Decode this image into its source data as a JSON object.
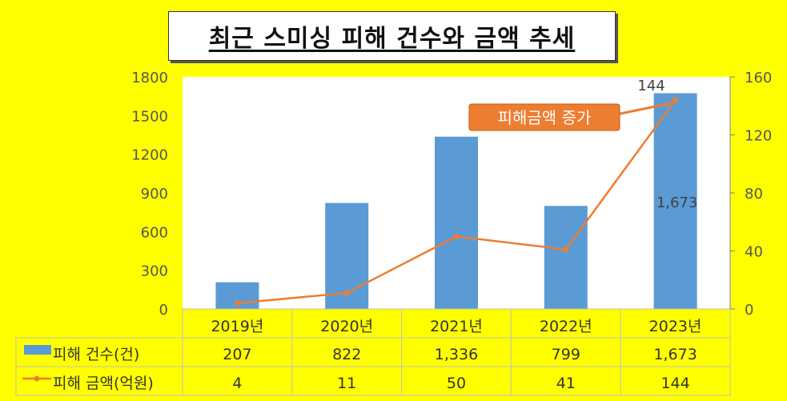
{
  "title": "최근 스미싱 피해 건수와 금액 추세",
  "callout": "피해금액 증가",
  "colors": {
    "bar": "#5b9bd5",
    "line": "#ed7d31",
    "background": "#ffff00",
    "callout": "#ed7d31"
  },
  "chart_data": {
    "type": "bar",
    "title": "최근 스미싱 피해 건수와 금액 추세",
    "categories": [
      "2019년",
      "2020년",
      "2021년",
      "2022년",
      "2023년"
    ],
    "series": [
      {
        "name": "피해 건수(건)",
        "type": "bar",
        "axis": "left",
        "values": [
          207,
          822,
          1336,
          799,
          1673
        ],
        "display": [
          "207",
          "822",
          "1,336",
          "799",
          "1,673"
        ]
      },
      {
        "name": "피해 금액(억원)",
        "type": "line",
        "axis": "right",
        "values": [
          4,
          11,
          50,
          41,
          144
        ],
        "display": [
          "4",
          "11",
          "50",
          "41",
          "144"
        ]
      }
    ],
    "y_left": {
      "ticks": [
        0,
        300,
        600,
        900,
        1200,
        1500,
        1800
      ],
      "range": [
        0,
        1800
      ]
    },
    "y_right": {
      "ticks": [
        0,
        40,
        80,
        120,
        160
      ],
      "range": [
        0,
        160
      ]
    },
    "data_labels": [
      {
        "series": "피해 금액(억원)",
        "category": "2023년",
        "text": "144"
      },
      {
        "series": "피해 건수(건)",
        "category": "2023년",
        "text": "1,673"
      }
    ],
    "grid": false,
    "legend": "data-table"
  }
}
